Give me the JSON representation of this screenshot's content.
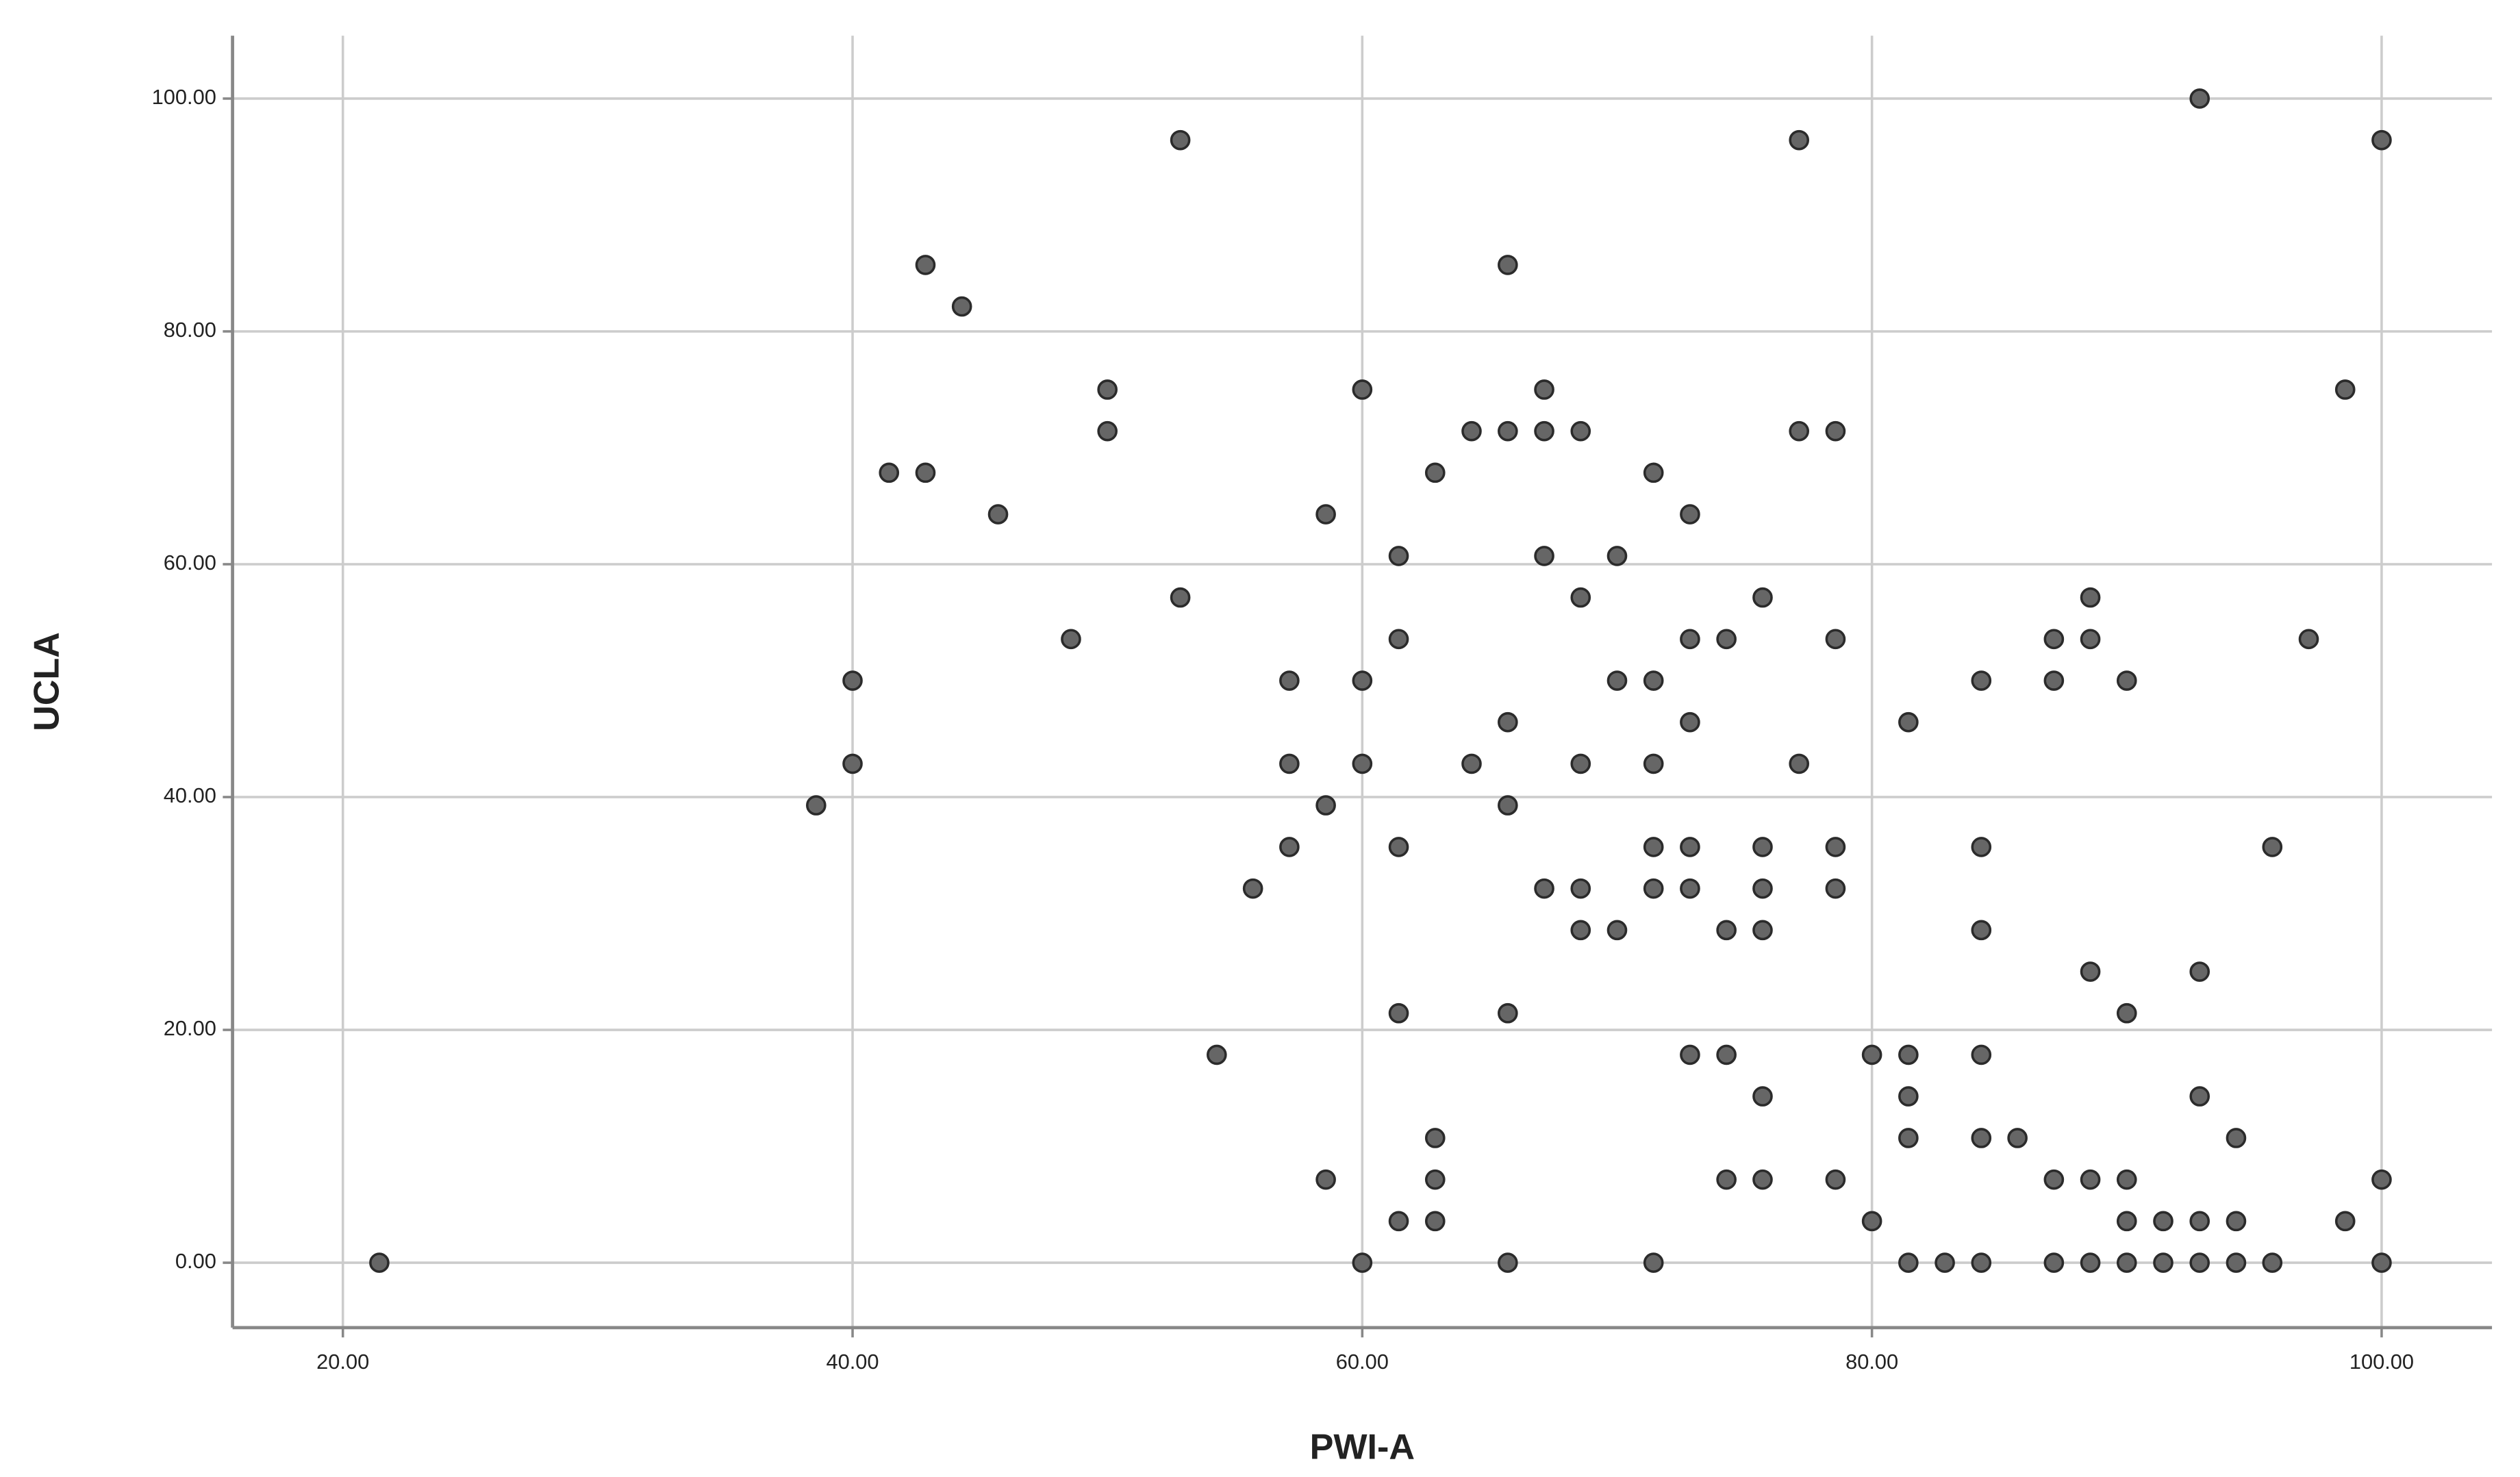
{
  "chart_data": {
    "type": "scatter",
    "x_label": "PWI-A",
    "y_label": "UCLA",
    "x": [
      21.43,
      38.57,
      40,
      40,
      41.43,
      42.86,
      42.86,
      44.29,
      45.71,
      48.57,
      50,
      50,
      52.86,
      52.86,
      54.29,
      55.71,
      57.14,
      57.14,
      57.14,
      58.57,
      58.57,
      58.57,
      60,
      60,
      60,
      60,
      61.43,
      61.43,
      61.43,
      61.43,
      61.43,
      62.86,
      62.86,
      62.86,
      62.86,
      64.29,
      64.29,
      65.71,
      65.71,
      65.71,
      65.71,
      65.71,
      65.71,
      67.14,
      67.14,
      67.14,
      67.14,
      68.57,
      68.57,
      68.57,
      68.57,
      68.57,
      70,
      70,
      70,
      71.43,
      71.43,
      71.43,
      71.43,
      71.43,
      71.43,
      72.86,
      72.86,
      72.86,
      72.86,
      72.86,
      72.86,
      74.29,
      74.29,
      74.29,
      74.29,
      75.71,
      75.71,
      75.71,
      75.71,
      75.71,
      75.71,
      77.14,
      77.14,
      77.14,
      78.57,
      78.57,
      78.57,
      78.57,
      78.57,
      80,
      80,
      81.43,
      81.43,
      81.43,
      81.43,
      81.43,
      82.86,
      84.29,
      84.29,
      84.29,
      84.29,
      84.29,
      84.29,
      85.71,
      87.14,
      87.14,
      87.14,
      87.14,
      88.57,
      88.57,
      88.57,
      88.57,
      88.57,
      90,
      90,
      90,
      90,
      90,
      91.43,
      91.43,
      92.86,
      92.86,
      92.86,
      92.86,
      92.86,
      94.29,
      94.29,
      94.29,
      95.71,
      95.71,
      97.14,
      98.57,
      98.57,
      100,
      100,
      100
    ],
    "values": [
      0,
      39.29,
      50,
      42.86,
      67.86,
      85.71,
      67.86,
      82.14,
      64.29,
      53.57,
      75,
      71.43,
      96.43,
      57.14,
      17.86,
      32.14,
      50,
      42.86,
      35.71,
      64.29,
      39.29,
      7.14,
      75,
      50,
      42.86,
      0,
      60.71,
      53.57,
      35.71,
      21.43,
      3.57,
      67.86,
      10.71,
      7.14,
      3.57,
      71.43,
      42.86,
      85.71,
      71.43,
      46.43,
      39.29,
      21.43,
      0,
      75,
      71.43,
      60.71,
      32.14,
      71.43,
      57.14,
      42.86,
      32.14,
      28.57,
      60.71,
      50,
      28.57,
      67.86,
      50,
      42.86,
      35.71,
      32.14,
      0,
      64.29,
      53.57,
      46.43,
      35.71,
      32.14,
      17.86,
      53.57,
      28.57,
      17.86,
      7.14,
      57.14,
      35.71,
      32.14,
      28.57,
      14.29,
      7.14,
      96.43,
      71.43,
      42.86,
      71.43,
      53.57,
      35.71,
      32.14,
      7.14,
      17.86,
      3.57,
      46.43,
      17.86,
      14.29,
      10.71,
      0,
      0,
      50,
      35.71,
      28.57,
      17.86,
      10.71,
      0,
      10.71,
      53.57,
      50,
      7.14,
      0,
      57.14,
      53.57,
      25,
      7.14,
      0,
      50,
      21.43,
      7.14,
      3.57,
      0,
      3.57,
      0,
      100,
      25,
      14.29,
      3.57,
      0,
      10.71,
      3.57,
      0,
      35.71,
      0,
      53.57,
      75,
      3.57,
      96.43,
      7.14,
      0
    ],
    "color": "#666666",
    "xlim": [
      15.67,
      104.33
    ],
    "ylim": [
      -5.58,
      105.4
    ],
    "xticks": [
      {
        "value": 20,
        "label": "20.00"
      },
      {
        "value": 40,
        "label": "40.00"
      },
      {
        "value": 60,
        "label": "60.00"
      },
      {
        "value": 80,
        "label": "80.00"
      },
      {
        "value": 100,
        "label": "100.00"
      }
    ],
    "yticks": [
      {
        "value": 0,
        "label": "0.00"
      },
      {
        "value": 20,
        "label": "20.00"
      },
      {
        "value": 40,
        "label": "40.00"
      },
      {
        "value": 60,
        "label": "60.00"
      },
      {
        "value": 80,
        "label": "80.00"
      },
      {
        "value": 100,
        "label": "100.00"
      }
    ],
    "grid": true
  }
}
